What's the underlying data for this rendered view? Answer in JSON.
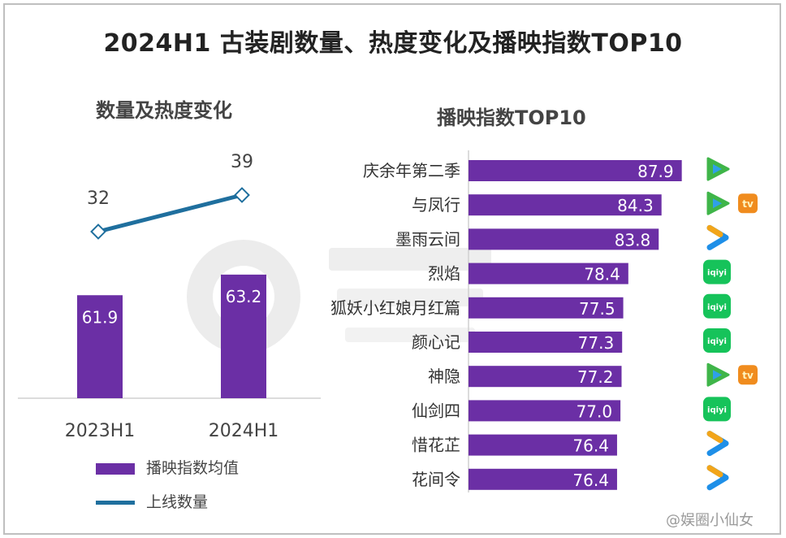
{
  "page": {
    "title": "2024H1 古装剧数量、热度变化及播映指数TOP10",
    "watermark": "@娱圈小仙女"
  },
  "chart_data": [
    {
      "type": "bar+line",
      "title": "数量及热度变化",
      "categories": [
        "2023H1",
        "2024H1"
      ],
      "series": [
        {
          "name": "播映指数均值",
          "kind": "bar",
          "color": "#6b2fa5",
          "values": [
            61.9,
            63.2
          ]
        },
        {
          "name": "上线数量",
          "kind": "line",
          "color": "#1f6f9e",
          "values": [
            32,
            39
          ]
        }
      ],
      "legend_position": "bottom-left",
      "grid": false
    },
    {
      "type": "bar",
      "orientation": "horizontal",
      "title": "播映指数TOP10",
      "color": "#6b2fa5",
      "categories": [
        "庆余年第二季",
        "与凤行",
        "墨雨云间",
        "烈焰",
        "狐妖小红娘月红篇",
        "颜心记",
        "神隐",
        "仙剑四",
        "惜花芷",
        "花间令"
      ],
      "values": [
        87.9,
        84.3,
        83.8,
        78.4,
        77.5,
        77.3,
        77.2,
        77.0,
        76.4,
        76.4
      ],
      "value_labels": [
        "87.9",
        "84.3",
        "83.8",
        "78.4",
        "77.5",
        "77.3",
        "77.2",
        "77.0",
        "76.4",
        "76.4"
      ],
      "platforms": [
        [
          "tencent-video"
        ],
        [
          "tencent-video",
          "mango-tv"
        ],
        [
          "youku"
        ],
        [
          "iqiyi"
        ],
        [
          "iqiyi"
        ],
        [
          "iqiyi"
        ],
        [
          "tencent-video",
          "mango-tv"
        ],
        [
          "iqiyi"
        ],
        [
          "youku"
        ],
        [
          "youku"
        ]
      ],
      "platform_labels": {
        "iqiyi": "iqiyi",
        "mango-tv": "tv"
      },
      "grid": false
    }
  ]
}
